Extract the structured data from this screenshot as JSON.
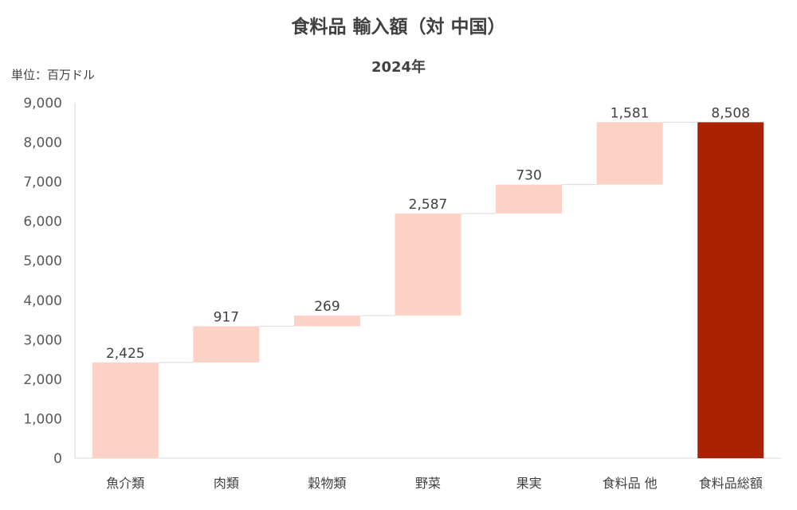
{
  "chart_data": {
    "type": "bar",
    "variant": "waterfall",
    "title": "食料品 輸入額（対 中国）",
    "subtitle": "2024年",
    "unit_label": "単位：百万ドル",
    "categories": [
      "魚介類",
      "肉類",
      "穀物類",
      "野菜",
      "果実",
      "食料品 他",
      "食料品総額"
    ],
    "values": [
      2425,
      917,
      269,
      2587,
      730,
      1581,
      8508
    ],
    "data_labels": [
      "2,425",
      "917",
      "269",
      "2,587",
      "730",
      "1,581",
      "8,508"
    ],
    "ylim": [
      0,
      9000
    ],
    "y_ticks": [
      {
        "value": 0,
        "label": "0"
      },
      {
        "value": 1000,
        "label": "1,000"
      },
      {
        "value": 2000,
        "label": "2,000"
      },
      {
        "value": 3000,
        "label": "3,000"
      },
      {
        "value": 4000,
        "label": "4,000"
      },
      {
        "value": 5000,
        "label": "5,000"
      },
      {
        "value": 6000,
        "label": "6,000"
      },
      {
        "value": 7000,
        "label": "7,000"
      },
      {
        "value": 8000,
        "label": "8,000"
      },
      {
        "value": 9000,
        "label": "9,000"
      }
    ],
    "grid": false,
    "colors": {
      "increment": "#FCD2C6",
      "total": "#AA2200",
      "connector": "#D9D9D9",
      "axis": "#D9D9D9"
    }
  }
}
